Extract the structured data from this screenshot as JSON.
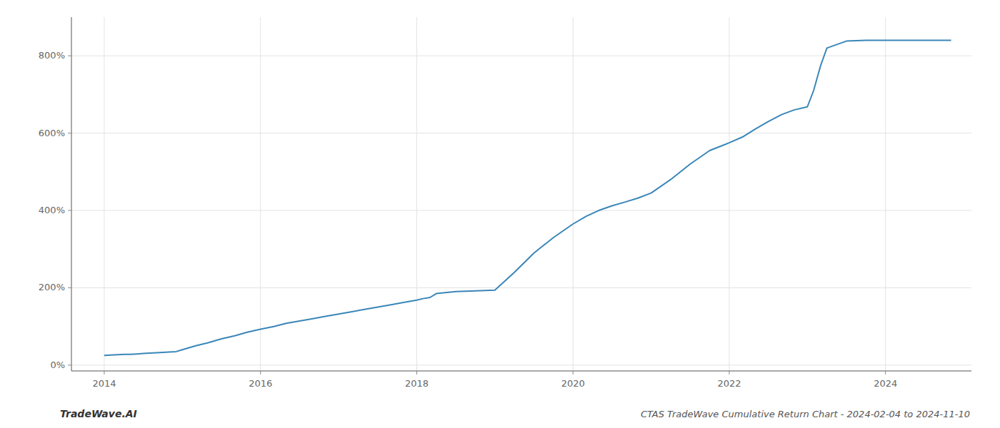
{
  "chart_data": {
    "type": "line",
    "title": "CTAS TradeWave Cumulative Return Chart - 2024-02-04 to 2024-11-10",
    "annotations": [
      "TradeWave.AI"
    ],
    "color": "#3a86b8",
    "x": [
      2014.0,
      2014.08,
      2014.17,
      2014.25,
      2014.33,
      2014.42,
      2014.5,
      2014.58,
      2014.67,
      2014.75,
      2014.83,
      2014.92,
      2015.0,
      2015.17,
      2015.33,
      2015.5,
      2015.67,
      2015.83,
      2016.0,
      2016.17,
      2016.33,
      2016.5,
      2016.67,
      2016.83,
      2017.0,
      2017.17,
      2017.33,
      2017.5,
      2017.67,
      2017.83,
      2018.0,
      2018.08,
      2018.17,
      2018.25,
      2018.5,
      2018.75,
      2019.0,
      2019.25,
      2019.5,
      2019.75,
      2020.0,
      2020.17,
      2020.33,
      2020.5,
      2020.67,
      2020.83,
      2021.0,
      2021.25,
      2021.5,
      2021.75,
      2022.0,
      2022.17,
      2022.33,
      2022.5,
      2022.67,
      2022.83,
      2023.0,
      2023.08,
      2023.17,
      2023.25,
      2023.5,
      2023.75,
      2024.0,
      2024.5,
      2024.84
    ],
    "values": [
      25,
      26,
      27,
      28,
      28,
      29,
      30,
      31,
      32,
      33,
      34,
      35,
      40,
      50,
      58,
      68,
      76,
      85,
      93,
      100,
      108,
      114,
      120,
      126,
      132,
      138,
      144,
      150,
      156,
      162,
      168,
      172,
      175,
      185,
      190,
      192,
      194,
      240,
      290,
      330,
      365,
      385,
      400,
      412,
      422,
      432,
      445,
      480,
      520,
      555,
      575,
      590,
      610,
      630,
      648,
      660,
      668,
      710,
      775,
      820,
      838,
      840,
      840,
      840,
      840
    ],
    "xlim": [
      2013.58,
      2025.1
    ],
    "ylim": [
      -15,
      900
    ],
    "xticks": [
      2014,
      2016,
      2018,
      2020,
      2022,
      2024
    ],
    "yticks": [
      {
        "value": 0,
        "label": "0%"
      },
      {
        "value": 200,
        "label": "200%"
      },
      {
        "value": 400,
        "label": "400%"
      },
      {
        "value": 600,
        "label": "600%"
      },
      {
        "value": 800,
        "label": "800%"
      }
    ],
    "grid": true
  }
}
